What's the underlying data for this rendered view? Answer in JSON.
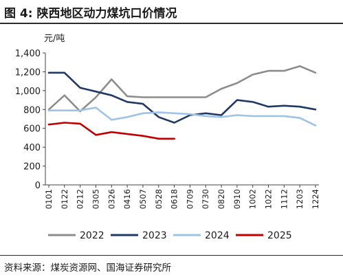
{
  "title": "图 4:    陕西地区动力煤坑口价情况",
  "source": "资料来源：煤炭资源网、国海证券研究所",
  "chart_data": {
    "type": "line",
    "ylabel": "元/吨",
    "ylim": [
      0,
      1400
    ],
    "y_ticks": [
      "0",
      "200",
      "400",
      "600",
      "800",
      "1,000",
      "1,200",
      "1,400"
    ],
    "grid": false,
    "legend_position": "bottom",
    "x": [
      "0101",
      "0122",
      "0212",
      "0305",
      "0326",
      "0416",
      "0507",
      "0528",
      "0618",
      "0709",
      "0730",
      "0820",
      "0910",
      "1002",
      "1022",
      "1112",
      "1203",
      "1224"
    ],
    "x_ticks": [
      "0101",
      "0122",
      "0212",
      "0305",
      "0326",
      "0416",
      "0507",
      "0528",
      "0618",
      "0709",
      "0730",
      "0820",
      "0910",
      "1002",
      "1022",
      "1112",
      "1203",
      "1224"
    ],
    "series": [
      {
        "name": "2022",
        "color": "#8c8c8c",
        "values": [
          800,
          950,
          780,
          930,
          1120,
          940,
          930,
          930,
          930,
          930,
          930,
          1020,
          1080,
          1170,
          1210,
          1210,
          1260,
          1190
        ]
      },
      {
        "name": "2023",
        "color": "#1f3864",
        "values": [
          1190,
          1190,
          1030,
          990,
          950,
          880,
          860,
          720,
          660,
          740,
          760,
          740,
          900,
          880,
          830,
          840,
          830,
          800
        ]
      },
      {
        "name": "2024",
        "color": "#9dc3e6",
        "values": [
          790,
          790,
          790,
          820,
          690,
          720,
          760,
          770,
          760,
          750,
          730,
          720,
          740,
          730,
          730,
          730,
          710,
          630
        ]
      },
      {
        "name": "2025",
        "color": "#c00000",
        "values": [
          640,
          660,
          650,
          530,
          560,
          540,
          520,
          490,
          490,
          null,
          null,
          null,
          null,
          null,
          null,
          null,
          null,
          null
        ]
      }
    ]
  }
}
